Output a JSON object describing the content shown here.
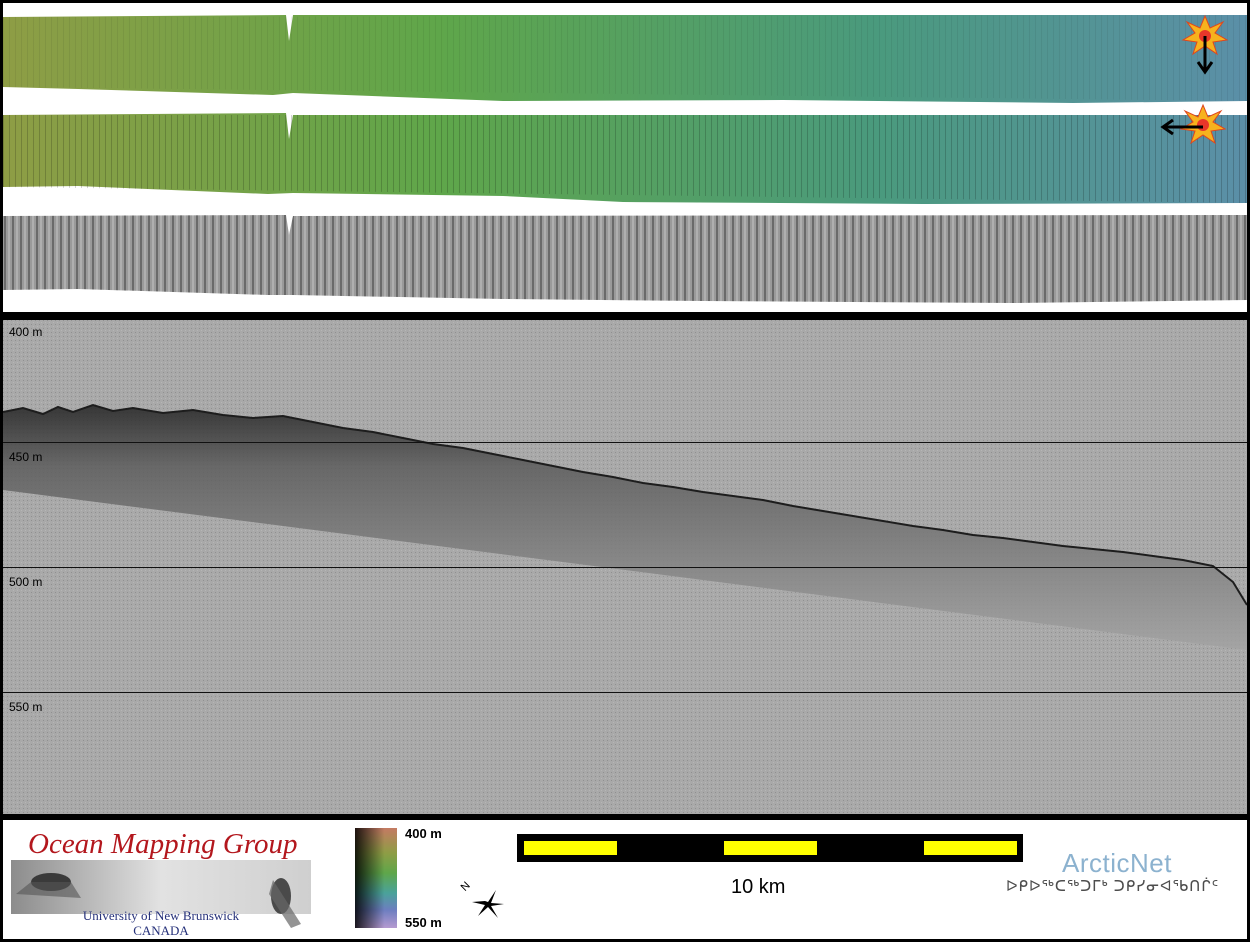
{
  "top_panel": {
    "strips": [
      {
        "name": "shaded-relief-sun-north",
        "colors": [
          "#8e9d45",
          "#5fa64a",
          "#4a9a7d",
          "#5b8fa8"
        ]
      },
      {
        "name": "shaded-relief-sun-east",
        "colors": [
          "#8e9d45",
          "#5fa64a",
          "#4a9a7d",
          "#5b8fa8"
        ]
      },
      {
        "name": "backscatter-mosaic",
        "colors": [
          "#7a7a7a",
          "#9b9b9b"
        ]
      }
    ],
    "icons": [
      "sun-north-illumination-icon",
      "sun-east-illumination-icon"
    ]
  },
  "profile": {
    "depth_labels": [
      "400 m",
      "450 m",
      "500 m",
      "550 m"
    ],
    "background_color": "#a9a9a9",
    "seafloor_color": "#2b2b2b"
  },
  "legend": {
    "omg_title": "Ocean Mapping Group",
    "omg_university": "University of New Brunswick",
    "omg_country": "CANADA",
    "colorbar_top": "400 m",
    "colorbar_bottom": "550 m",
    "compass_letter": "N",
    "scale_label": "10 km",
    "scale_colors": [
      "#ffff00",
      "#000000"
    ],
    "arcticnet_title": "ArcticNet",
    "arcticnet_subtitle": "ᐅᑭᐅᖅᑕᖅᑐᒥᒃ ᑐᑭᓯᓂᐊᖃᑎᒌᑦ"
  }
}
